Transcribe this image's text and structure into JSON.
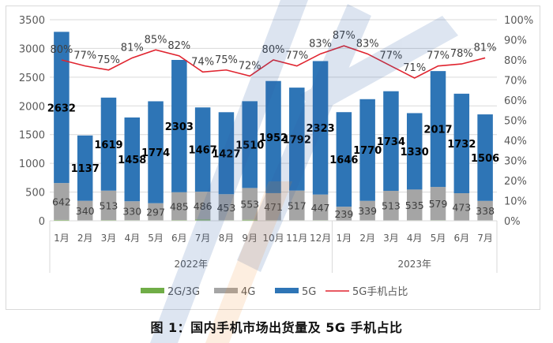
{
  "caption": "图 1：国内手机市场出货量及 5G 手机占比",
  "legend": [
    {
      "label": "2G/3G",
      "color": "#70ad47",
      "type": "bar"
    },
    {
      "label": "4G",
      "color": "#a5a5a5",
      "type": "bar"
    },
    {
      "label": "5G",
      "color": "#2e75b6",
      "type": "bar"
    },
    {
      "label": "5G手机占比",
      "color": "#e0242f",
      "type": "line"
    }
  ],
  "chart_data": {
    "type": "bar",
    "stacked": true,
    "title": "图 1：国内手机市场出货量及 5G 手机占比",
    "categories": [
      "1月",
      "2月",
      "3月",
      "4月",
      "5月",
      "6月",
      "7月",
      "8月",
      "9月",
      "10月",
      "11月",
      "12月",
      "1月",
      "2月",
      "3月",
      "4月",
      "5月",
      "6月",
      "7月"
    ],
    "category_groups": [
      {
        "label": "2022年",
        "start": 0,
        "end": 11
      },
      {
        "label": "2023年",
        "start": 12,
        "end": 18
      }
    ],
    "series": [
      {
        "name": "2G/3G",
        "type": "bar",
        "axis": "left",
        "color": "#70ad47",
        "values": [
          15,
          8,
          12,
          10,
          9,
          12,
          20,
          10,
          18,
          10,
          9,
          10,
          6,
          8,
          8,
          9,
          10,
          7,
          8
        ]
      },
      {
        "name": "4G",
        "type": "bar",
        "axis": "left",
        "color": "#a5a5a5",
        "values": [
          642,
          340,
          513,
          330,
          297,
          485,
          486,
          453,
          553,
          471,
          517,
          447,
          239,
          339,
          513,
          535,
          579,
          473,
          338
        ]
      },
      {
        "name": "5G",
        "type": "bar",
        "axis": "left",
        "color": "#2e75b6",
        "values": [
          2632,
          1137,
          1619,
          1458,
          1774,
          2303,
          1467,
          1427,
          1510,
          1952,
          1792,
          2323,
          1646,
          1770,
          1734,
          1330,
          2017,
          1732,
          1506
        ]
      },
      {
        "name": "5G手机占比",
        "type": "line",
        "axis": "right",
        "color": "#e0242f",
        "values": [
          80,
          77,
          75,
          81,
          85,
          82,
          74,
          75,
          72,
          80,
          77,
          83,
          87,
          83,
          77,
          71,
          77,
          78,
          81
        ],
        "unit": "%"
      }
    ],
    "xlabel": "",
    "ylabel": "",
    "ylim": [
      0,
      3500
    ],
    "yticks": [
      0,
      500,
      1000,
      1500,
      2000,
      2500,
      3000,
      3500
    ],
    "y2lim": [
      0,
      100
    ],
    "y2ticks": [
      "0%",
      "10%",
      "20%",
      "30%",
      "40%",
      "50%",
      "60%",
      "70%",
      "80%",
      "90%",
      "100%"
    ],
    "grid": true,
    "legend_position": "bottom"
  }
}
